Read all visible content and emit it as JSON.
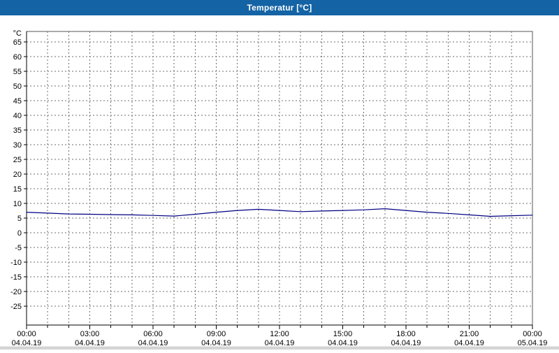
{
  "window": {
    "title": "Temperatur [°C]"
  },
  "colors": {
    "titlebar": "#1463A5",
    "title_text": "#ffffff",
    "line": "#000080",
    "grid": "#6e6e6e",
    "axis": "#000000",
    "plot_background": "#ffffff",
    "footer_strip": "#d4d4d4"
  },
  "chart_data": {
    "type": "line",
    "title": "Temperatur [°C]",
    "ylabel": "°C",
    "ylim": [
      -25,
      65
    ],
    "y_tick_step": 5,
    "y_ticks": [
      65,
      60,
      55,
      50,
      45,
      40,
      35,
      30,
      25,
      20,
      15,
      10,
      5,
      0,
      -5,
      -10,
      -15,
      -20,
      -25
    ],
    "grid": "dashed, vertical every 1 hour, horizontal every 5 deg",
    "legend_position": "none",
    "x_ticks": [
      {
        "time": "00:00",
        "date": "04.04.19"
      },
      {
        "time": "03:00",
        "date": "04.04.19"
      },
      {
        "time": "06:00",
        "date": "04.04.19"
      },
      {
        "time": "09:00",
        "date": "04.04.19"
      },
      {
        "time": "12:00",
        "date": "04.04.19"
      },
      {
        "time": "15:00",
        "date": "04.04.19"
      },
      {
        "time": "18:00",
        "date": "04.04.19"
      },
      {
        "time": "21:00",
        "date": "04.04.19"
      },
      {
        "time": "00:00",
        "date": "05.04.19"
      }
    ],
    "series": [
      {
        "name": "Temperatur",
        "color": "#000080",
        "x_hours": [
          0,
          1,
          2,
          3,
          4,
          5,
          6,
          7,
          8,
          9,
          10,
          11,
          12,
          13,
          14,
          15,
          16,
          17,
          18,
          19,
          20,
          21,
          22,
          23,
          24
        ],
        "values": [
          7.0,
          6.7,
          6.4,
          6.3,
          6.2,
          6.1,
          5.9,
          5.7,
          6.3,
          7.0,
          7.6,
          8.0,
          7.6,
          7.2,
          7.4,
          7.6,
          7.8,
          8.2,
          7.6,
          7.0,
          6.6,
          6.1,
          5.6,
          5.8,
          6.0
        ]
      }
    ]
  }
}
